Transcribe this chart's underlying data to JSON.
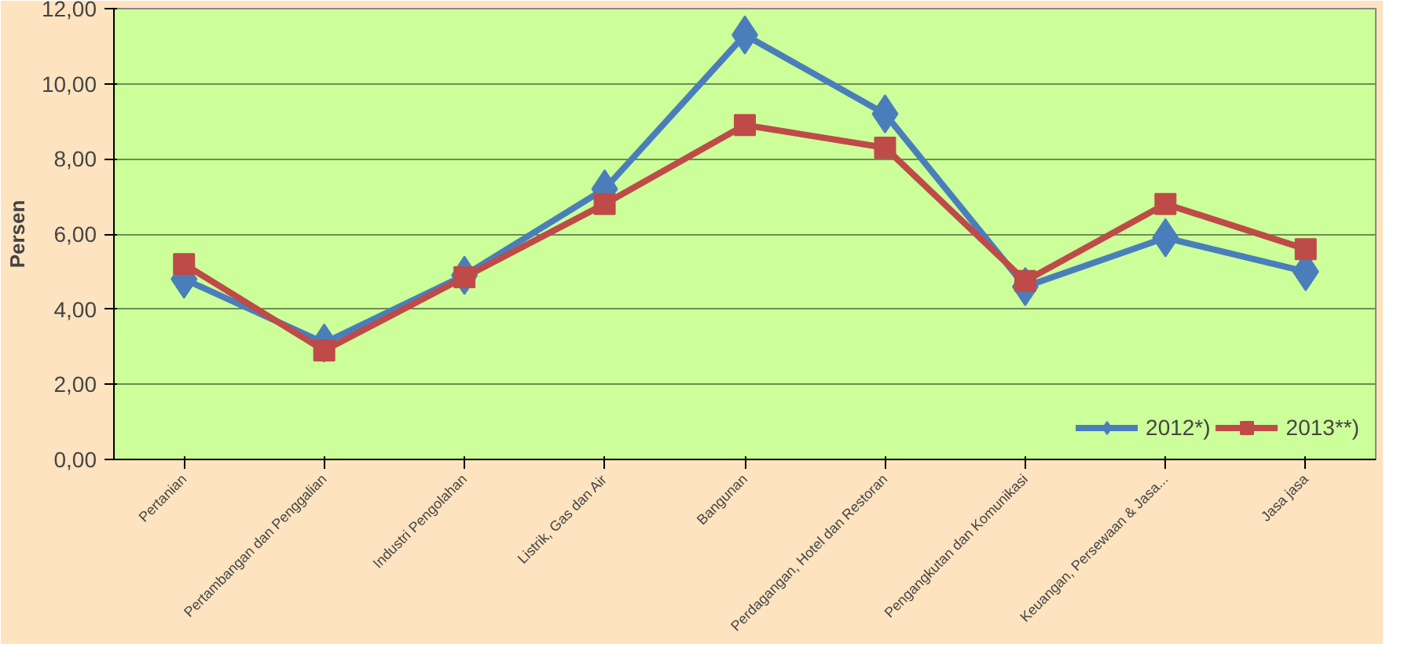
{
  "chart_data": {
    "type": "line",
    "ylabel": "Persen",
    "categories": [
      "Pertanian",
      "Pertambangan dan Penggalian",
      "Industri Pengolahan",
      "Listrik, Gas dan Air",
      "Bangunan",
      "Perdagangan, Hotel dan Restoran",
      "Pengangkutan dan Komunikasi",
      "Keuangan, Persewaan & Jasa...",
      "Jasa jasa"
    ],
    "series": [
      {
        "name": "2012*)",
        "color": "#4a7ebb",
        "marker": "diamond",
        "values": [
          4.8,
          3.1,
          4.9,
          7.2,
          11.3,
          9.2,
          4.6,
          5.9,
          5.0
        ]
      },
      {
        "name": "2013**)",
        "color": "#be4b48",
        "marker": "square",
        "values": [
          5.2,
          2.9,
          4.85,
          6.8,
          8.9,
          8.3,
          4.75,
          6.8,
          5.6
        ]
      }
    ],
    "ylim": [
      0,
      12
    ],
    "yticks": [
      {
        "value": 0,
        "label": "0,00"
      },
      {
        "value": 2,
        "label": "2,00"
      },
      {
        "value": 4,
        "label": "4,00"
      },
      {
        "value": 6,
        "label": "6,00"
      },
      {
        "value": 8,
        "label": "8,00"
      },
      {
        "value": 10,
        "label": "10,00"
      },
      {
        "value": 12,
        "label": "12,00"
      }
    ],
    "grid": "y",
    "legend": "bottom right"
  }
}
